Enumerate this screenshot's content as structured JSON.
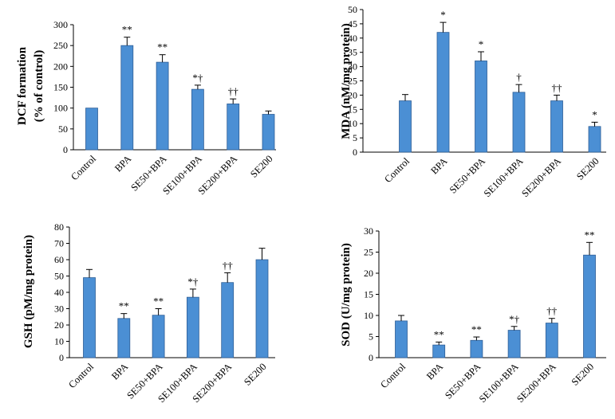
{
  "chart_data": [
    {
      "id": "dcf",
      "type": "bar",
      "ylabel_lines": [
        "DCF formation",
        "(% of control)"
      ],
      "categories": [
        "Control",
        "BPA",
        "SE50+BPA",
        "SE100+BPA",
        "SE200+BPA",
        "SE200"
      ],
      "values": [
        100,
        250,
        210,
        145,
        110,
        85
      ],
      "errors": [
        0,
        20,
        18,
        10,
        12,
        8
      ],
      "annotations": [
        "",
        "**",
        "**",
        "*†",
        "††",
        ""
      ],
      "ylim": [
        0,
        300
      ],
      "yticks": [
        0,
        50,
        100,
        150,
        200,
        250,
        300
      ],
      "bar_color": "#4b8fd4",
      "bar_edge": "#2e5e96"
    },
    {
      "id": "mda",
      "type": "bar",
      "ylabel_lines": [
        "MDA (nM/mg protein)"
      ],
      "categories": [
        "Control",
        "BPA",
        "SE50+BPA",
        "SE100+BPA",
        "SE200+BPA",
        "SE200"
      ],
      "values": [
        18,
        42,
        32,
        21,
        18,
        9
      ],
      "errors": [
        2.2,
        3.5,
        3.2,
        2.7,
        2,
        1.5
      ],
      "annotations": [
        "",
        "*",
        "*",
        "†",
        "††",
        "*"
      ],
      "ylim": [
        0,
        50
      ],
      "yticks": [
        0,
        5,
        10,
        15,
        20,
        25,
        30,
        35,
        40,
        45,
        50
      ],
      "bar_color": "#4b8fd4",
      "bar_edge": "#2e5e96"
    },
    {
      "id": "gsh",
      "type": "bar",
      "ylabel_lines": [
        "GSH (pM/mg protein)"
      ],
      "categories": [
        "Control",
        "BPA",
        "SE50+BPA",
        "SE100+BPA",
        "SE200+BPA",
        "SE200"
      ],
      "values": [
        49,
        24,
        26,
        37,
        46,
        60
      ],
      "errors": [
        5,
        3,
        4,
        5,
        6,
        7
      ],
      "annotations": [
        "",
        "**",
        "**",
        "*†",
        "††",
        ""
      ],
      "ylim": [
        0,
        80
      ],
      "yticks": [
        0,
        10,
        20,
        30,
        40,
        50,
        60,
        70,
        80
      ],
      "bar_color": "#4b8fd4",
      "bar_edge": "#2e5e96"
    },
    {
      "id": "sod",
      "type": "bar",
      "ylabel_lines": [
        "SOD (U/mg protein)"
      ],
      "categories": [
        "Control",
        "BPA",
        "SE50+BPA",
        "SE100+BPA",
        "SE200+BPA",
        "SE200"
      ],
      "values": [
        8.7,
        3,
        4.1,
        6.5,
        8.2,
        24.3
      ],
      "errors": [
        1.3,
        0.7,
        0.8,
        0.9,
        1.1,
        3
      ],
      "annotations": [
        "",
        "**",
        "**",
        "*†",
        "††",
        "**"
      ],
      "ylim": [
        0,
        30
      ],
      "yticks": [
        0,
        5,
        10,
        15,
        20,
        25,
        30
      ],
      "bar_color": "#4b8fd4",
      "bar_edge": "#2e5e96"
    }
  ]
}
